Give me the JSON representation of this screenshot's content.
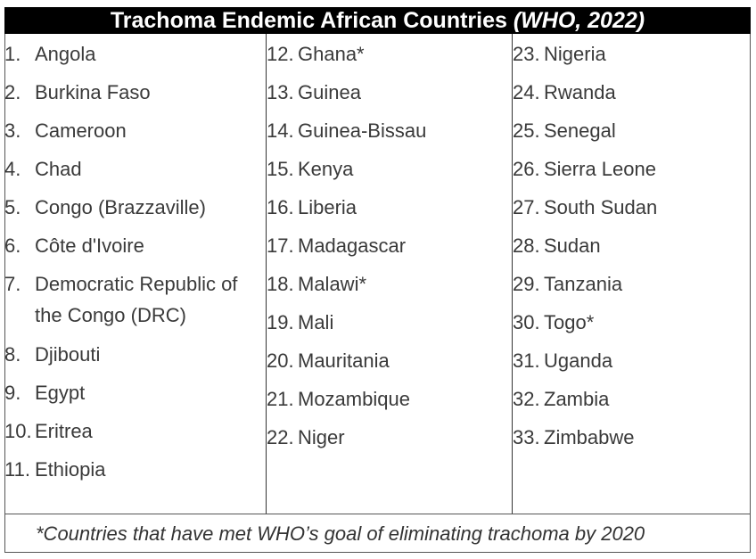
{
  "title": {
    "main": "Trachoma Endemic African Countries ",
    "source": "(WHO, 2022)"
  },
  "columns": [
    [
      {
        "num": "1.",
        "name": "Angola"
      },
      {
        "num": "2.",
        "name": "Burkina Faso"
      },
      {
        "num": "3.",
        "name": "Cameroon"
      },
      {
        "num": "4.",
        "name": "Chad"
      },
      {
        "num": "5.",
        "name": "Congo (Brazzaville)"
      },
      {
        "num": "6.",
        "name": "Côte d'Ivoire"
      },
      {
        "num": "7.",
        "name": "Democratic Republic of",
        "name2": "the Congo (DRC)"
      },
      {
        "num": "8.",
        "name": "Djibouti"
      },
      {
        "num": "9.",
        "name": "Egypt"
      },
      {
        "num": "10.",
        "name": "Eritrea"
      },
      {
        "num": "11.",
        "name": "Ethiopia"
      }
    ],
    [
      {
        "num": "12.",
        "name": "Ghana*"
      },
      {
        "num": "13.",
        "name": "Guinea"
      },
      {
        "num": "14.",
        "name": "Guinea-Bissau"
      },
      {
        "num": "15.",
        "name": "Kenya"
      },
      {
        "num": "16.",
        "name": "Liberia"
      },
      {
        "num": "17.",
        "name": "Madagascar"
      },
      {
        "num": "18.",
        "name": "Malawi*"
      },
      {
        "num": "19.",
        "name": "Mali"
      },
      {
        "num": "20.",
        "name": "Mauritania"
      },
      {
        "num": "21.",
        "name": "Mozambique"
      },
      {
        "num": "22.",
        "name": "Niger"
      }
    ],
    [
      {
        "num": "23.",
        "name": "Nigeria"
      },
      {
        "num": "24.",
        "name": "Rwanda"
      },
      {
        "num": "25.",
        "name": "Senegal"
      },
      {
        "num": "26.",
        "name": "Sierra Leone"
      },
      {
        "num": "27.",
        "name": "South Sudan"
      },
      {
        "num": "28.",
        "name": "Sudan"
      },
      {
        "num": "29.",
        "name": "Tanzania"
      },
      {
        "num": "30.",
        "name": "Togo*"
      },
      {
        "num": "31.",
        "name": "Uganda"
      },
      {
        "num": "32.",
        "name": "Zambia"
      },
      {
        "num": "33.",
        "name": "Zimbabwe"
      }
    ]
  ],
  "footer": "*Countries that have met WHO’s goal of eliminating trachoma by 2020"
}
